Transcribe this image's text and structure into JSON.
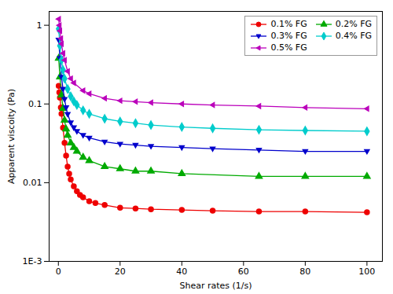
{
  "chart_data": {
    "type": "line",
    "xlabel": "Shear rates (1/s)",
    "ylabel": "Apparent viscoity (Pa)",
    "xlim": [
      -3,
      105
    ],
    "xticks": [
      0,
      20,
      40,
      60,
      80,
      100
    ],
    "ylim": [
      0.001,
      1.5
    ],
    "yticks": [
      {
        "value": 0.001,
        "label": "1E-3"
      },
      0.01,
      0.1,
      1
    ],
    "log": "y",
    "legend": "upper right",
    "series": [
      {
        "name": "0.1% FG",
        "color": "#EE0000",
        "marker": "circle",
        "x": [
          0.1,
          0.3,
          0.5,
          0.8,
          1.0,
          1.5,
          2.0,
          2.5,
          3.0,
          3.5,
          4.0,
          5.0,
          6.0,
          7.0,
          8.0,
          10.0,
          12.0,
          15.0,
          20.0,
          25.0,
          30.0,
          40.0,
          50.0,
          65.0,
          80.0,
          100.0
        ],
        "values": [
          0.17,
          0.14,
          0.12,
          0.09,
          0.075,
          0.05,
          0.032,
          0.022,
          0.016,
          0.013,
          0.011,
          0.009,
          0.0078,
          0.007,
          0.0065,
          0.0058,
          0.0055,
          0.0052,
          0.0048,
          0.0047,
          0.0046,
          0.0045,
          0.0044,
          0.0043,
          0.0043,
          0.0042
        ]
      },
      {
        "name": "0.2% FG",
        "color": "#00AA00",
        "marker": "triangle-up",
        "x": [
          0.1,
          0.5,
          1.0,
          1.5,
          2.0,
          2.5,
          3.0,
          4.0,
          5.0,
          6.0,
          8.0,
          10.0,
          15.0,
          20.0,
          25.0,
          30.0,
          40.0,
          65.0,
          80.0,
          100.0
        ],
        "values": [
          0.38,
          0.22,
          0.13,
          0.088,
          0.062,
          0.048,
          0.04,
          0.032,
          0.028,
          0.025,
          0.021,
          0.019,
          0.016,
          0.015,
          0.014,
          0.014,
          0.013,
          0.012,
          0.012,
          0.012
        ]
      },
      {
        "name": "0.3% FG",
        "color": "#0000CC",
        "marker": "triangle-down",
        "x": [
          0.1,
          0.5,
          1.0,
          1.5,
          2.0,
          2.5,
          3.0,
          4.0,
          5.0,
          6.0,
          8.0,
          10.0,
          15.0,
          20.0,
          25.0,
          30.0,
          40.0,
          50.0,
          65.0,
          80.0,
          100.0
        ],
        "values": [
          0.65,
          0.38,
          0.22,
          0.155,
          0.115,
          0.09,
          0.074,
          0.058,
          0.05,
          0.045,
          0.04,
          0.037,
          0.033,
          0.031,
          0.03,
          0.029,
          0.028,
          0.027,
          0.026,
          0.025,
          0.025
        ]
      },
      {
        "name": "0.4% FG",
        "color": "#00CCCC",
        "marker": "diamond",
        "x": [
          0.1,
          0.5,
          1.0,
          1.5,
          2.0,
          3.0,
          4.0,
          5.0,
          6.0,
          8.0,
          10.0,
          15.0,
          20.0,
          25.0,
          30.0,
          40.0,
          50.0,
          65.0,
          80.0,
          100.0
        ],
        "values": [
          0.9,
          0.55,
          0.36,
          0.27,
          0.21,
          0.155,
          0.125,
          0.108,
          0.097,
          0.083,
          0.075,
          0.065,
          0.06,
          0.057,
          0.054,
          0.051,
          0.049,
          0.047,
          0.046,
          0.045
        ]
      },
      {
        "name": "0.5% FG",
        "color": "#BB00BB",
        "marker": "triangle-left",
        "x": [
          0.1,
          0.3,
          0.5,
          0.8,
          1.0,
          1.5,
          2.0,
          3.0,
          4.0,
          5.0,
          8.0,
          10.0,
          15.0,
          20.0,
          25.0,
          30.0,
          40.0,
          50.0,
          65.0,
          80.0,
          100.0
        ],
        "values": [
          1.2,
          1.0,
          0.85,
          0.68,
          0.58,
          0.44,
          0.36,
          0.26,
          0.21,
          0.185,
          0.148,
          0.135,
          0.118,
          0.11,
          0.107,
          0.104,
          0.1,
          0.097,
          0.094,
          0.09,
          0.087
        ]
      }
    ]
  }
}
